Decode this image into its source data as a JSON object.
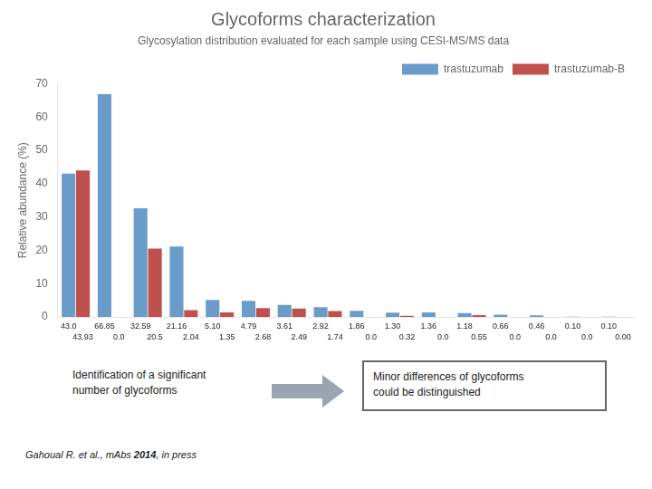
{
  "chart_data": {
    "type": "bar",
    "title": "Glycoforms characterization",
    "subtitle": "Glycosylation distribution evaluated for each sample using CESI-MS/MS data",
    "y_label": "Relative abundance (%)",
    "categories": [
      null,
      null,
      null,
      null,
      null,
      null,
      null,
      null,
      null,
      null,
      null,
      null,
      null,
      null,
      null,
      null
    ],
    "series": [
      {
        "name": "trastuzumab",
        "color": "#6A9CC9",
        "values": [
          43.0,
          66.85,
          32.59,
          21.16,
          5.1,
          4.79,
          3.61,
          2.92,
          1.86,
          1.3,
          1.36,
          1.18,
          0.66,
          0.46,
          0.1,
          0.1
        ],
        "value_labels": [
          "43.0",
          "66.85",
          "32.59",
          "21.16",
          "5.10",
          "4.79",
          "3.61",
          "2.92",
          "1.86",
          "1.30",
          "1.36",
          "1.18",
          "0.66",
          "0.46",
          "0.10",
          "0.10"
        ]
      },
      {
        "name": "trastuzumab-B",
        "color": "#C0504D",
        "values": [
          43.93,
          0.0,
          20.5,
          2.04,
          1.35,
          2.68,
          2.49,
          1.74,
          0.0,
          0.32,
          0.0,
          0.55,
          0.0,
          0.0,
          0.0,
          0.0
        ],
        "value_labels": [
          "43.93",
          "0.0",
          "20.5",
          "2.04",
          "1.35",
          "2.68",
          "2.49",
          "1.74",
          "0.0",
          "0.32",
          "0.0",
          "0.55",
          "0.0",
          "0.0",
          "0.0",
          "0.00"
        ]
      }
    ],
    "ylim": [
      0,
      70
    ],
    "yticks": [
      0,
      10,
      20,
      30,
      40,
      50,
      60,
      70
    ],
    "grid": false,
    "legend": "top",
    "data_labels": true,
    "tick_labels": "y",
    "annotations": [
      "Identification of a significant",
      "number of glycoforms",
      "Minor differences of glycoforms",
      "could be distinguished"
    ],
    "citation": [
      "Gahoual R. et al., mAbs ",
      "2014",
      ", in press"
    ]
  }
}
